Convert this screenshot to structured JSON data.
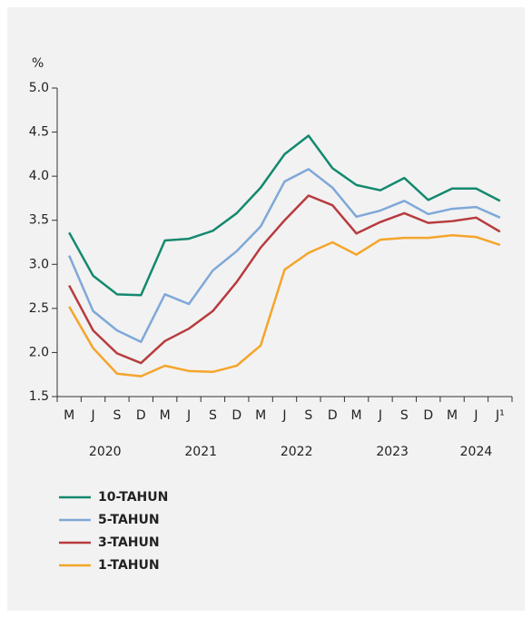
{
  "chart_data": {
    "type": "line",
    "y_label": "%",
    "categories": [
      "M",
      "J",
      "S",
      "D",
      "M",
      "J",
      "S",
      "D",
      "M",
      "J",
      "S",
      "D",
      "M",
      "J",
      "S",
      "D",
      "M",
      "J",
      "J¹"
    ],
    "years": [
      "2020",
      null,
      null,
      null,
      "2021",
      null,
      null,
      null,
      "2022",
      null,
      null,
      null,
      "2023",
      null,
      null,
      null,
      "2024",
      null,
      null
    ],
    "ylim": [
      1.5,
      5.0
    ],
    "yticks": [
      1.5,
      {
        "value": 2,
        "label": "2.0"
      },
      2.5,
      {
        "value": 3,
        "label": "3.0"
      },
      3.5,
      {
        "value": 4,
        "label": "4.0"
      },
      4.5,
      {
        "value": 5,
        "label": "5.0"
      }
    ],
    "grid": false,
    "series": [
      {
        "name": "10-TAHUN",
        "color": "#13896e",
        "values": [
          3.36,
          2.87,
          2.66,
          2.65,
          3.27,
          3.29,
          3.38,
          3.58,
          3.87,
          4.25,
          4.46,
          4.09,
          3.9,
          3.84,
          3.98,
          3.73,
          3.86,
          3.86,
          3.72
        ]
      },
      {
        "name": "5-TAHUN",
        "color": "#7fa8d8",
        "values": [
          3.1,
          2.47,
          2.25,
          2.12,
          2.66,
          2.55,
          2.93,
          3.15,
          3.43,
          3.94,
          4.08,
          3.87,
          3.54,
          3.61,
          3.72,
          3.57,
          3.63,
          3.65,
          3.53
        ]
      },
      {
        "name": "3-TAHUN",
        "color": "#b83b3e",
        "values": [
          2.76,
          2.25,
          1.99,
          1.88,
          2.13,
          2.27,
          2.47,
          2.8,
          3.19,
          3.5,
          3.78,
          3.67,
          3.35,
          3.48,
          3.58,
          3.47,
          3.49,
          3.53,
          3.37
        ]
      },
      {
        "name": "1-TAHUN",
        "color": "#f4a52a",
        "values": [
          2.52,
          2.05,
          1.76,
          1.73,
          1.85,
          1.79,
          1.78,
          1.85,
          2.08,
          2.94,
          3.13,
          3.25,
          3.11,
          3.28,
          3.3,
          3.3,
          3.33,
          3.31,
          3.22
        ]
      }
    ]
  }
}
